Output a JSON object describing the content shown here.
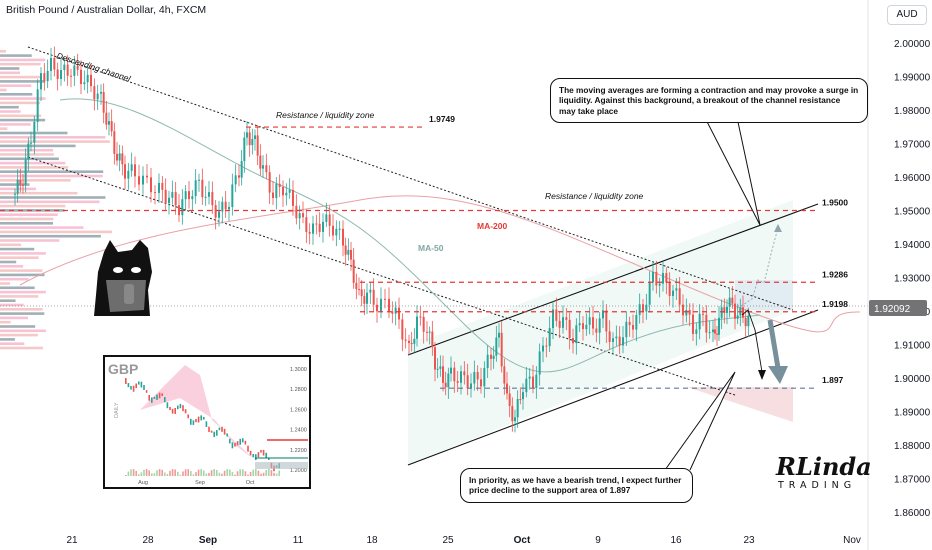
{
  "header": {
    "title": "British Pound / Australian Dollar, 4h, FXCM",
    "currency": "AUD"
  },
  "colors": {
    "bull": "#26a69a",
    "bear": "#ef5350",
    "ma50": "#8fb8b2",
    "ma200": "#e9a1a6",
    "level_red": "#e53935",
    "level_blue": "#5c7a9a",
    "zone_green": "#e6f4ef",
    "zone_red": "#f6d9dc"
  },
  "chart_data": {
    "type": "candlestick",
    "title": "British Pound / Australian Dollar, 4h, FXCM",
    "y_axis": {
      "ylim": [
        1.855,
        2.007
      ],
      "ticks": [
        "2.00000",
        "1.99000",
        "1.98000",
        "1.97000",
        "1.96000",
        "1.95000",
        "1.94000",
        "1.93000",
        "1.92000",
        "1.91000",
        "1.90000",
        "1.89000",
        "1.88000",
        "1.87000",
        "1.86000"
      ]
    },
    "x_axis": {
      "ticks": [
        "21",
        "28",
        "Sep",
        "11",
        "18",
        "25",
        "Oct",
        "9",
        "16",
        "23",
        "Nov"
      ]
    },
    "current_price": "1.92092",
    "levels": [
      {
        "label": "1.9749",
        "value": 1.9749,
        "style": "red-dashed"
      },
      {
        "label": "1.9500",
        "value": 1.95,
        "style": "red-dashed"
      },
      {
        "label": "1.9286",
        "value": 1.9286,
        "style": "red-dashed"
      },
      {
        "label": "1.9198",
        "value": 1.9198,
        "style": "red-dashed"
      },
      {
        "label": "1.897",
        "value": 1.897,
        "style": "blue-dashed"
      }
    ],
    "series": [
      {
        "name": "MA-50"
      },
      {
        "name": "MA-200"
      }
    ],
    "annotations": {
      "descending_channel": "Descending channel",
      "resistance_top": "Resistance / liquidity zone",
      "resistance_right": "Resistance / liquidity zone",
      "ma200_label": "MA-200",
      "ma50_label": "MA-50",
      "note_top": "The moving averages are forming a contraction and may provoke a surge in liquidity. Against this background, a breakout of the channel resistance may take place",
      "note_bottom": "In priority, as we have a bearish trend, I expect further price decline to the support area of 1.897"
    },
    "inset": {
      "symbol": "GBP",
      "period": "DAILY",
      "y_ticks": [
        "1.3000",
        "1.2800",
        "1.2600",
        "1.2400",
        "1.2200",
        "1.2000"
      ],
      "x_ticks": [
        "Aug",
        "Sep",
        "Oct"
      ]
    }
  },
  "logo": {
    "main": "RLinda",
    "sub": "TRADING"
  }
}
